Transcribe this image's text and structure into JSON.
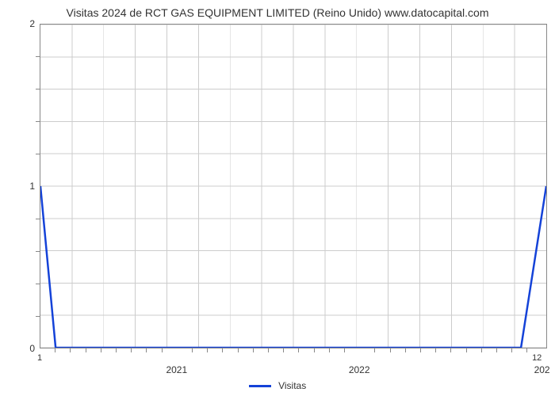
{
  "chart": {
    "type": "line",
    "title": "Visitas 2024 de RCT GAS EQUIPMENT LIMITED (Reino Unido) www.datocapital.com",
    "title_fontsize": 14,
    "title_color": "#333333",
    "background_color": "#ffffff",
    "plot_border_color": "#888888",
    "grid_color": "#cccccc",
    "series": {
      "name": "Visitas",
      "color": "#1442d8",
      "line_width": 2.5,
      "x": [
        0,
        0.03,
        0.95,
        1.0
      ],
      "y": [
        1.0,
        0.0,
        0.0,
        1.0
      ]
    },
    "y_axis": {
      "min": 0,
      "max": 2,
      "ticks": [
        0,
        1,
        2
      ],
      "minor_tick_count": 4,
      "label_fontsize": 12,
      "label_color": "#333333"
    },
    "x_axis": {
      "left_label": "1",
      "right_label": "12",
      "right_label2": "202",
      "major_ticks": [
        {
          "pos": 0.27,
          "label": "2021"
        },
        {
          "pos": 0.63,
          "label": "2022"
        }
      ],
      "minor_tick_positions": [
        0.03,
        0.06,
        0.09,
        0.12,
        0.15,
        0.18,
        0.21,
        0.24,
        0.3,
        0.33,
        0.36,
        0.39,
        0.42,
        0.45,
        0.48,
        0.51,
        0.54,
        0.57,
        0.6,
        0.66,
        0.69,
        0.72,
        0.75,
        0.78,
        0.81,
        0.84,
        0.87,
        0.9,
        0.93,
        0.96
      ],
      "vertical_grid_positions": [
        0.0625,
        0.125,
        0.1875,
        0.25,
        0.3125,
        0.375,
        0.4375,
        0.5,
        0.5625,
        0.625,
        0.6875,
        0.75,
        0.8125,
        0.875,
        0.9375
      ],
      "label_fontsize": 12
    },
    "legend": {
      "label": "Visitas",
      "color": "#1442d8",
      "fontsize": 12
    }
  }
}
